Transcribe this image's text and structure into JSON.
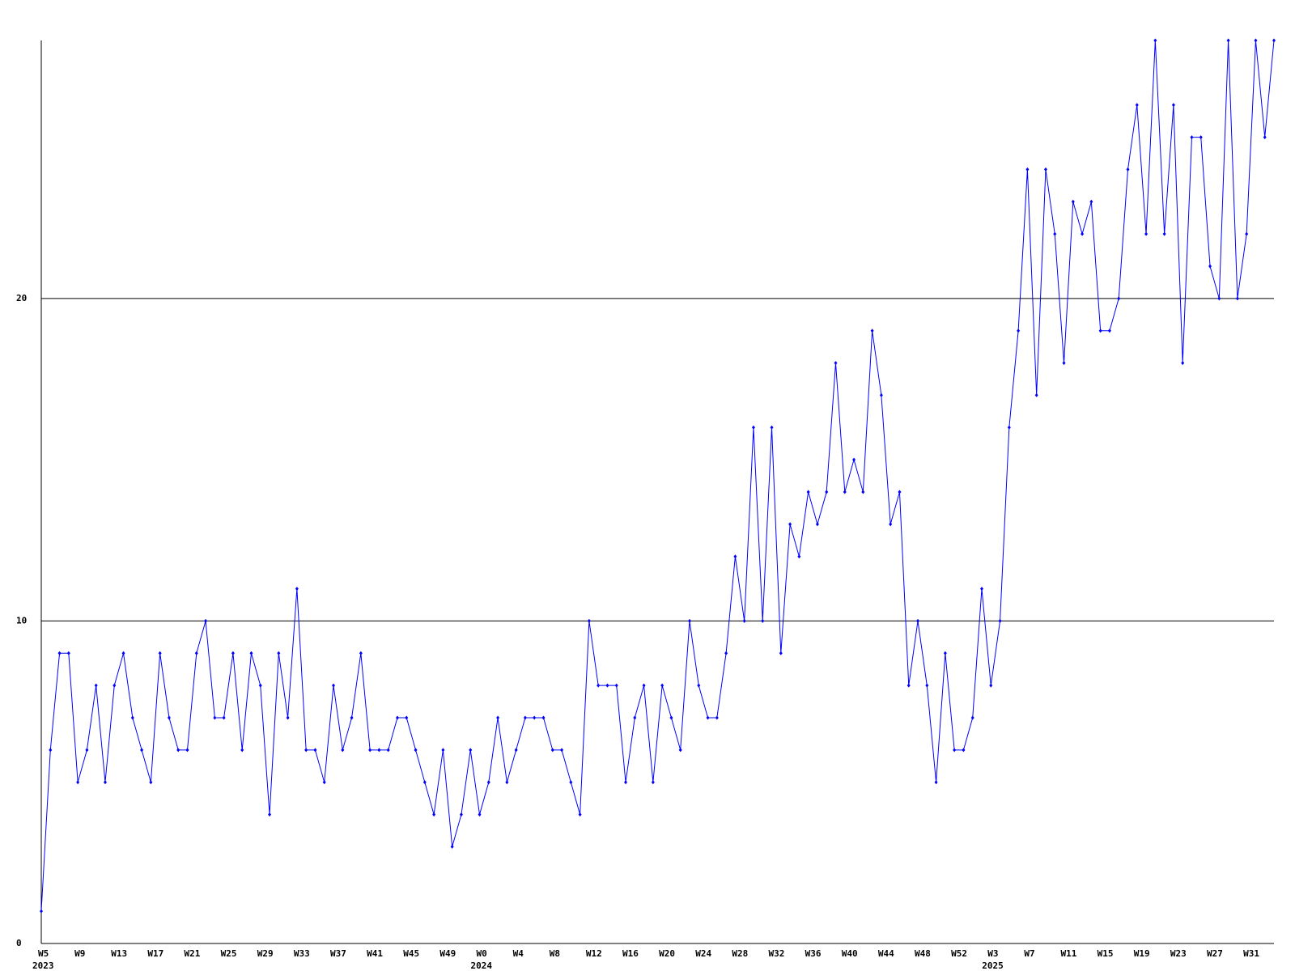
{
  "chart_data": {
    "type": "line",
    "categories": [
      "W5",
      null,
      null,
      null,
      "W9",
      null,
      null,
      null,
      "W13",
      null,
      null,
      null,
      "W17",
      null,
      null,
      null,
      "W21",
      null,
      null,
      null,
      "W25",
      null,
      null,
      null,
      "W29",
      null,
      null,
      null,
      "W33",
      null,
      null,
      null,
      "W37",
      null,
      null,
      null,
      "W41",
      null,
      null,
      null,
      "W45",
      null,
      null,
      null,
      "W49",
      null,
      null,
      null,
      "W0",
      null,
      null,
      null,
      "W4",
      null,
      null,
      null,
      "W8",
      null,
      null,
      null,
      "W12",
      null,
      null,
      null,
      "W16",
      null,
      null,
      null,
      "W20",
      null,
      null,
      null,
      "W24",
      null,
      null,
      null,
      "W28",
      null,
      null,
      null,
      "W32",
      null,
      null,
      null,
      "W36",
      null,
      null,
      null,
      "W40",
      null,
      null,
      null,
      "W44",
      null,
      null,
      null,
      "W48",
      null,
      null,
      null,
      "W52",
      null,
      null,
      null,
      "W3",
      null,
      null,
      null,
      "W7",
      null,
      null,
      null,
      "W11",
      null,
      null,
      null,
      "W15",
      null,
      null,
      null,
      "W19",
      null,
      null,
      null,
      "W23",
      null,
      null,
      null,
      "W27",
      null,
      null,
      null,
      "W31",
      null,
      null,
      null
    ],
    "years": [
      "2023",
      null,
      null,
      null,
      null,
      null,
      null,
      null,
      null,
      null,
      null,
      null,
      null,
      null,
      null,
      null,
      null,
      null,
      null,
      null,
      null,
      null,
      null,
      null,
      null,
      null,
      null,
      null,
      null,
      null,
      null,
      null,
      null,
      null,
      null,
      null,
      null,
      null,
      null,
      null,
      null,
      null,
      null,
      null,
      null,
      null,
      null,
      null,
      "2024",
      null,
      null,
      null,
      null,
      null,
      null,
      null,
      null,
      null,
      null,
      null,
      null,
      null,
      null,
      null,
      null,
      null,
      null,
      null,
      null,
      null,
      null,
      null,
      null,
      null,
      null,
      null,
      null,
      null,
      null,
      null,
      null,
      null,
      null,
      null,
      null,
      null,
      null,
      null,
      null,
      null,
      null,
      null,
      null,
      null,
      null,
      null,
      null,
      null,
      null,
      null,
      null,
      null,
      null,
      null,
      "2025",
      null,
      null,
      null,
      null,
      null,
      null,
      null,
      null,
      null,
      null,
      null,
      null,
      null,
      null,
      null,
      null,
      null,
      null,
      null,
      null,
      null,
      null,
      null,
      null,
      null,
      null,
      null,
      null,
      null,
      null,
      null
    ],
    "series": [
      {
        "color": "#0000ff",
        "values": [
          1,
          6,
          9,
          9,
          5,
          6,
          8,
          5,
          8,
          9,
          7,
          6,
          5,
          9,
          7,
          6,
          6,
          9,
          10,
          7,
          7,
          9,
          6,
          9,
          8,
          4,
          9,
          7,
          11,
          6,
          6,
          5,
          8,
          6,
          7,
          9,
          6,
          6,
          6,
          7,
          7,
          6,
          5,
          4,
          6,
          3,
          4,
          6,
          4,
          5,
          7,
          5,
          6,
          7,
          7,
          7,
          6,
          6,
          5,
          4,
          10,
          8,
          8,
          8,
          5,
          7,
          8,
          5,
          8,
          7,
          6,
          10,
          8,
          7,
          7,
          9,
          12,
          10,
          16,
          10,
          16,
          9,
          13,
          12,
          14,
          13,
          14,
          18,
          14,
          15,
          14,
          19,
          17,
          13,
          14,
          8,
          10,
          8,
          5,
          9,
          6,
          6,
          7,
          11,
          8,
          10,
          16,
          19,
          24,
          17,
          24,
          22,
          18,
          23,
          22,
          23,
          19,
          19,
          20,
          24,
          26,
          22,
          28,
          22,
          26,
          18,
          25,
          25,
          21,
          20,
          28,
          20,
          22,
          28,
          25,
          28
        ]
      }
    ],
    "ylim": [
      0,
      28
    ],
    "yticks": [
      0,
      10,
      20
    ],
    "grid": true
  }
}
